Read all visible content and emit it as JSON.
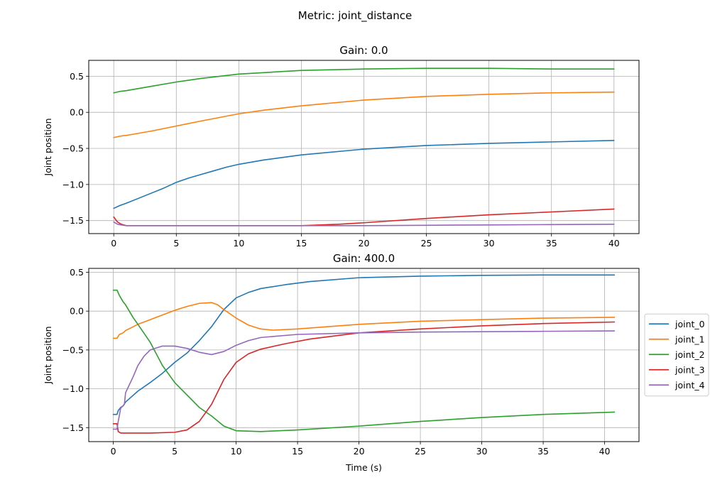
{
  "figure": {
    "suptitle": "Metric: joint_distance"
  },
  "chart_data": [
    {
      "type": "line",
      "title": "Gain: 0.0",
      "xlabel": "",
      "ylabel": "Joint position",
      "xlim": [
        -2,
        42
      ],
      "ylim": [
        -1.68,
        0.72
      ],
      "xticks": [
        0,
        5,
        10,
        15,
        20,
        25,
        30,
        35,
        40
      ],
      "yticks": [
        -1.5,
        -1.0,
        -0.5,
        0.0,
        0.5
      ],
      "grid": true,
      "legend": "none",
      "series": [
        {
          "name": "joint_0",
          "color": "#1f77b4",
          "points": [
            [
              0,
              -1.33
            ],
            [
              0.5,
              -1.29
            ],
            [
              1,
              -1.26
            ],
            [
              2,
              -1.19
            ],
            [
              3,
              -1.12
            ],
            [
              4,
              -1.05
            ],
            [
              5,
              -0.97
            ],
            [
              6,
              -0.91
            ],
            [
              7,
              -0.86
            ],
            [
              8,
              -0.81
            ],
            [
              9,
              -0.76
            ],
            [
              10,
              -0.72
            ],
            [
              12,
              -0.66
            ],
            [
              15,
              -0.59
            ],
            [
              20,
              -0.51
            ],
            [
              25,
              -0.46
            ],
            [
              30,
              -0.43
            ],
            [
              35,
              -0.41
            ],
            [
              40,
              -0.39
            ]
          ]
        },
        {
          "name": "joint_1",
          "color": "#ff7f0e",
          "points": [
            [
              0,
              -0.35
            ],
            [
              0.5,
              -0.33
            ],
            [
              1,
              -0.32
            ],
            [
              3,
              -0.26
            ],
            [
              5,
              -0.19
            ],
            [
              7,
              -0.12
            ],
            [
              10,
              -0.02
            ],
            [
              12,
              0.03
            ],
            [
              15,
              0.09
            ],
            [
              20,
              0.17
            ],
            [
              25,
              0.22
            ],
            [
              30,
              0.25
            ],
            [
              35,
              0.27
            ],
            [
              40,
              0.28
            ]
          ]
        },
        {
          "name": "joint_2",
          "color": "#2ca02c",
          "points": [
            [
              0,
              0.27
            ],
            [
              0.5,
              0.29
            ],
            [
              1,
              0.3
            ],
            [
              3,
              0.36
            ],
            [
              5,
              0.42
            ],
            [
              7,
              0.47
            ],
            [
              10,
              0.53
            ],
            [
              12,
              0.55
            ],
            [
              15,
              0.58
            ],
            [
              20,
              0.6
            ],
            [
              25,
              0.61
            ],
            [
              30,
              0.61
            ],
            [
              35,
              0.6
            ],
            [
              40,
              0.6
            ]
          ]
        },
        {
          "name": "joint_3",
          "color": "#d62728",
          "points": [
            [
              0,
              -1.45
            ],
            [
              0.3,
              -1.52
            ],
            [
              0.6,
              -1.55
            ],
            [
              1,
              -1.57
            ],
            [
              5,
              -1.57
            ],
            [
              10,
              -1.57
            ],
            [
              15,
              -1.57
            ],
            [
              18,
              -1.55
            ],
            [
              20,
              -1.53
            ],
            [
              25,
              -1.47
            ],
            [
              30,
              -1.42
            ],
            [
              35,
              -1.38
            ],
            [
              40,
              -1.34
            ]
          ]
        },
        {
          "name": "joint_4",
          "color": "#9467bd",
          "points": [
            [
              0,
              -1.52
            ],
            [
              0.3,
              -1.55
            ],
            [
              0.6,
              -1.56
            ],
            [
              1,
              -1.57
            ],
            [
              5,
              -1.57
            ],
            [
              10,
              -1.57
            ],
            [
              15,
              -1.57
            ],
            [
              20,
              -1.57
            ],
            [
              25,
              -1.565
            ],
            [
              30,
              -1.56
            ],
            [
              35,
              -1.555
            ],
            [
              40,
              -1.55
            ]
          ]
        }
      ]
    },
    {
      "type": "line",
      "title": "Gain: 400.0",
      "xlabel": "Time (s)",
      "ylabel": "Joint position",
      "xlim": [
        -2,
        42.8
      ],
      "ylim": [
        -1.68,
        0.55
      ],
      "xticks": [
        0,
        5,
        10,
        15,
        20,
        25,
        30,
        35,
        40
      ],
      "yticks": [
        -1.5,
        -1.0,
        -0.5,
        0.0,
        0.5
      ],
      "grid": true,
      "legend": "right",
      "series": [
        {
          "name": "joint_0",
          "color": "#1f77b4",
          "points": [
            [
              0,
              -1.33
            ],
            [
              0.2,
              -1.33
            ],
            [
              0.3,
              -1.33
            ],
            [
              0.4,
              -1.28
            ],
            [
              0.6,
              -1.24
            ],
            [
              0.8,
              -1.22
            ],
            [
              1,
              -1.17
            ],
            [
              1.5,
              -1.1
            ],
            [
              2,
              -1.03
            ],
            [
              3,
              -0.92
            ],
            [
              4,
              -0.8
            ],
            [
              5,
              -0.66
            ],
            [
              6,
              -0.54
            ],
            [
              7,
              -0.38
            ],
            [
              8,
              -0.2
            ],
            [
              9,
              0.02
            ],
            [
              10,
              0.17
            ],
            [
              11,
              0.24
            ],
            [
              12,
              0.29
            ],
            [
              14,
              0.34
            ],
            [
              16,
              0.38
            ],
            [
              20,
              0.43
            ],
            [
              25,
              0.45
            ],
            [
              30,
              0.46
            ],
            [
              35,
              0.465
            ],
            [
              40.8,
              0.465
            ]
          ]
        },
        {
          "name": "joint_1",
          "color": "#ff7f0e",
          "points": [
            [
              0,
              -0.35
            ],
            [
              0.3,
              -0.35
            ],
            [
              0.5,
              -0.3
            ],
            [
              0.8,
              -0.28
            ],
            [
              1,
              -0.25
            ],
            [
              1.5,
              -0.21
            ],
            [
              2,
              -0.17
            ],
            [
              3,
              -0.11
            ],
            [
              4,
              -0.05
            ],
            [
              5,
              0.01
            ],
            [
              6,
              0.06
            ],
            [
              7,
              0.1
            ],
            [
              8,
              0.11
            ],
            [
              8.5,
              0.08
            ],
            [
              9,
              0.02
            ],
            [
              10,
              -0.09
            ],
            [
              11,
              -0.18
            ],
            [
              12,
              -0.23
            ],
            [
              13,
              -0.245
            ],
            [
              15,
              -0.23
            ],
            [
              20,
              -0.17
            ],
            [
              25,
              -0.13
            ],
            [
              30,
              -0.11
            ],
            [
              35,
              -0.09
            ],
            [
              40.8,
              -0.08
            ]
          ]
        },
        {
          "name": "joint_2",
          "color": "#2ca02c",
          "points": [
            [
              0,
              0.27
            ],
            [
              0.3,
              0.27
            ],
            [
              0.5,
              0.2
            ],
            [
              0.8,
              0.12
            ],
            [
              1,
              0.08
            ],
            [
              1.3,
              0.0
            ],
            [
              1.6,
              -0.08
            ],
            [
              2,
              -0.17
            ],
            [
              3,
              -0.4
            ],
            [
              4,
              -0.7
            ],
            [
              5,
              -0.92
            ],
            [
              6,
              -1.08
            ],
            [
              7,
              -1.24
            ],
            [
              8,
              -1.35
            ],
            [
              9,
              -1.48
            ],
            [
              10,
              -1.54
            ],
            [
              12,
              -1.55
            ],
            [
              15,
              -1.53
            ],
            [
              20,
              -1.48
            ],
            [
              25,
              -1.42
            ],
            [
              30,
              -1.37
            ],
            [
              35,
              -1.33
            ],
            [
              40.8,
              -1.3
            ]
          ]
        },
        {
          "name": "joint_3",
          "color": "#d62728",
          "points": [
            [
              0,
              -1.45
            ],
            [
              0.3,
              -1.45
            ],
            [
              0.4,
              -1.55
            ],
            [
              0.6,
              -1.57
            ],
            [
              1,
              -1.57
            ],
            [
              3,
              -1.57
            ],
            [
              5,
              -1.56
            ],
            [
              6,
              -1.53
            ],
            [
              7,
              -1.42
            ],
            [
              8,
              -1.2
            ],
            [
              9,
              -0.88
            ],
            [
              10,
              -0.66
            ],
            [
              11,
              -0.55
            ],
            [
              12,
              -0.49
            ],
            [
              14,
              -0.42
            ],
            [
              16,
              -0.36
            ],
            [
              20,
              -0.28
            ],
            [
              25,
              -0.23
            ],
            [
              30,
              -0.19
            ],
            [
              35,
              -0.16
            ],
            [
              40.8,
              -0.14
            ]
          ]
        },
        {
          "name": "joint_4",
          "color": "#9467bd",
          "points": [
            [
              0,
              -1.52
            ],
            [
              0.3,
              -1.52
            ],
            [
              0.4,
              -1.42
            ],
            [
              0.6,
              -1.25
            ],
            [
              0.9,
              -1.2
            ],
            [
              1,
              -1.05
            ],
            [
              1.3,
              -0.95
            ],
            [
              1.6,
              -0.85
            ],
            [
              2,
              -0.7
            ],
            [
              2.5,
              -0.58
            ],
            [
              3,
              -0.5
            ],
            [
              4,
              -0.45
            ],
            [
              5,
              -0.45
            ],
            [
              6,
              -0.48
            ],
            [
              7,
              -0.53
            ],
            [
              8,
              -0.56
            ],
            [
              9,
              -0.52
            ],
            [
              10,
              -0.44
            ],
            [
              11,
              -0.38
            ],
            [
              12,
              -0.34
            ],
            [
              15,
              -0.3
            ],
            [
              20,
              -0.28
            ],
            [
              25,
              -0.27
            ],
            [
              30,
              -0.265
            ],
            [
              35,
              -0.26
            ],
            [
              40.8,
              -0.255
            ]
          ]
        }
      ]
    }
  ]
}
